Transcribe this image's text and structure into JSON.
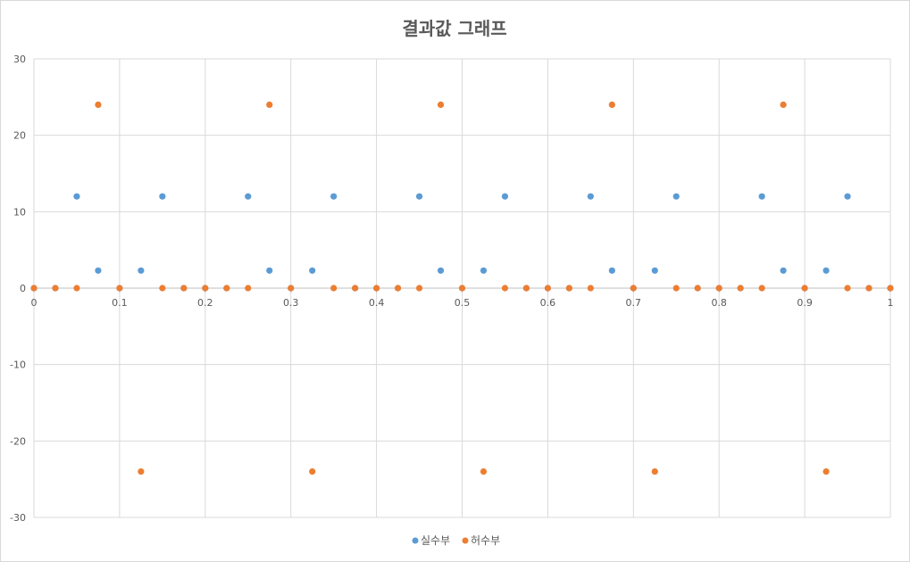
{
  "chart_data": {
    "type": "scatter",
    "title": "결과값 그래프",
    "xlabel": "",
    "ylabel": "",
    "xlim": [
      0,
      1
    ],
    "ylim": [
      -30,
      30
    ],
    "x_ticks": [
      0,
      0.1,
      0.2,
      0.3,
      0.4,
      0.5,
      0.6,
      0.7,
      0.8,
      0.9,
      1
    ],
    "y_ticks": [
      -30,
      -20,
      -10,
      0,
      10,
      20,
      30
    ],
    "x_tick_labels": [
      "0",
      "0.1",
      "0.2",
      "0.3",
      "0.4",
      "0.5",
      "0.6",
      "0.7",
      "0.8",
      "0.9",
      "1"
    ],
    "y_tick_labels": [
      "-30",
      "-20",
      "-10",
      "0",
      "10",
      "20",
      "30"
    ],
    "grid": true,
    "legend_position": "bottom",
    "x": [
      0,
      0.025,
      0.05,
      0.075,
      0.1,
      0.125,
      0.15,
      0.175,
      0.2,
      0.225,
      0.25,
      0.275,
      0.3,
      0.325,
      0.35,
      0.375,
      0.4,
      0.425,
      0.45,
      0.475,
      0.5,
      0.525,
      0.55,
      0.575,
      0.6,
      0.625,
      0.65,
      0.675,
      0.7,
      0.725,
      0.75,
      0.775,
      0.8,
      0.825,
      0.85,
      0.875,
      0.9,
      0.925,
      0.95,
      0.975,
      1
    ],
    "series": [
      {
        "name": "실수부",
        "color": "#5b9bd5",
        "values": [
          0,
          0,
          12,
          2.3,
          0,
          2.3,
          12,
          0,
          0,
          0,
          12,
          2.3,
          0,
          2.3,
          12,
          0,
          0,
          0,
          12,
          2.3,
          0,
          2.3,
          12,
          0,
          0,
          0,
          12,
          2.3,
          0,
          2.3,
          12,
          0,
          0,
          0,
          12,
          2.3,
          0,
          2.3,
          12,
          0,
          0
        ]
      },
      {
        "name": "허수부",
        "color": "#ed7d31",
        "values": [
          0,
          0,
          0,
          24,
          0,
          -24,
          0,
          0,
          0,
          0,
          0,
          24,
          0,
          -24,
          0,
          0,
          0,
          0,
          0,
          24,
          0,
          -24,
          0,
          0,
          0,
          0,
          0,
          24,
          0,
          -24,
          0,
          0,
          0,
          0,
          0,
          24,
          0,
          -24,
          0,
          0,
          0
        ]
      }
    ]
  }
}
